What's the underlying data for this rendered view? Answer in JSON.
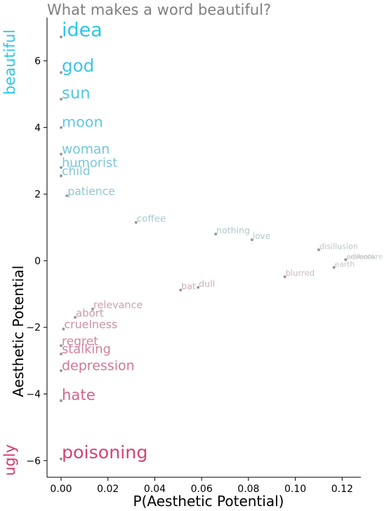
{
  "chart_data": {
    "type": "scatter",
    "title": "What makes a word beautiful?",
    "xlabel": "P(Aesthetic Potential)",
    "ylabel": "Aesthetic Potential",
    "side_labels": {
      "top": "beautiful",
      "bottom": "ugly"
    },
    "xlim": [
      -0.006,
      0.128
    ],
    "ylim": [
      -6.5,
      7.3
    ],
    "xticks": [
      0.0,
      0.02,
      0.04,
      0.06,
      0.08,
      0.1,
      0.12
    ],
    "xtick_labels": [
      "0.00",
      "0.02",
      "0.04",
      "0.06",
      "0.08",
      "0.10",
      "0.12"
    ],
    "yticks": [
      -6,
      -4,
      -2,
      0,
      2,
      4,
      6
    ],
    "ytick_labels": [
      "−6",
      "−4",
      "−2",
      "0",
      "2",
      "4",
      "6"
    ],
    "grid": false,
    "colors": {
      "beautiful": "#2bc6ea",
      "ugly": "#d6356a",
      "neutral": "#c8c8c8",
      "point": "#999999"
    },
    "points": [
      {
        "word": "idea",
        "x": 0.0,
        "y": 6.72
      },
      {
        "word": "god",
        "x": 0.0,
        "y": 5.65
      },
      {
        "word": "sun",
        "x": 0.0,
        "y": 4.85
      },
      {
        "word": "moon",
        "x": 0.0,
        "y": 4.0
      },
      {
        "word": "woman",
        "x": 0.0,
        "y": 3.2
      },
      {
        "word": "humorist",
        "x": 0.0,
        "y": 2.8
      },
      {
        "word": "child",
        "x": 0.0,
        "y": 2.55
      },
      {
        "word": "patience",
        "x": 0.0025,
        "y": 1.95
      },
      {
        "word": "coffee",
        "x": 0.032,
        "y": 1.15
      },
      {
        "word": "nothing",
        "x": 0.066,
        "y": 0.8
      },
      {
        "word": "love",
        "x": 0.0815,
        "y": 0.63
      },
      {
        "word": "disillusion",
        "x": 0.11,
        "y": 0.33
      },
      {
        "word": "cellbook",
        "x": 0.1215,
        "y": 0.03
      },
      {
        "word": "adventure",
        "x": 0.1215,
        "y": 0.03
      },
      {
        "word": "earth",
        "x": 0.1165,
        "y": -0.2
      },
      {
        "word": "blurred",
        "x": 0.0955,
        "y": -0.48
      },
      {
        "word": "dull",
        "x": 0.0585,
        "y": -0.8
      },
      {
        "word": "bat",
        "x": 0.051,
        "y": -0.88
      },
      {
        "word": "relevance",
        "x": 0.0135,
        "y": -1.45
      },
      {
        "word": "abort",
        "x": 0.006,
        "y": -1.7
      },
      {
        "word": "cruelness",
        "x": 0.001,
        "y": -2.05
      },
      {
        "word": "regret",
        "x": 0.0,
        "y": -2.55
      },
      {
        "word": "stalking",
        "x": 0.0,
        "y": -2.8
      },
      {
        "word": "depression",
        "x": 0.0,
        "y": -3.3
      },
      {
        "word": "hate",
        "x": 0.0,
        "y": -4.2
      },
      {
        "word": "poisoning",
        "x": 0.0,
        "y": -5.95
      }
    ]
  }
}
